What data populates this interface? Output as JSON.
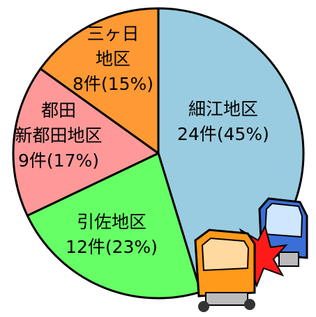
{
  "chart_data": {
    "type": "pie",
    "categories": [
      [
        "細江地区"
      ],
      [
        "引佐地区"
      ],
      [
        "都田",
        "新都田地区"
      ],
      [
        "三ヶ日",
        "地区"
      ]
    ],
    "values": [
      24,
      12,
      9,
      8
    ],
    "value_labels": [
      "24件(45%)",
      "12件(23%)",
      "9件(17%)",
      "8件(15%)"
    ],
    "colors": [
      "#99cce0",
      "#66ff66",
      "#ff9999",
      "#ff9933"
    ]
  }
}
